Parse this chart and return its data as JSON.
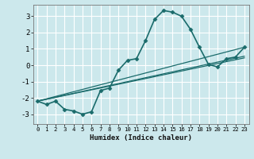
{
  "xlabel": "Humidex (Indice chaleur)",
  "bg_color": "#cce8ec",
  "grid_color": "#ffffff",
  "line_color": "#1a6b6b",
  "xlim": [
    -0.5,
    23.5
  ],
  "ylim": [
    -3.6,
    3.7
  ],
  "yticks": [
    -3,
    -2,
    -1,
    0,
    1,
    2,
    3
  ],
  "xticks": [
    0,
    1,
    2,
    3,
    4,
    5,
    6,
    7,
    8,
    9,
    10,
    11,
    12,
    13,
    14,
    15,
    16,
    17,
    18,
    19,
    20,
    21,
    22,
    23
  ],
  "curve": {
    "x": [
      0,
      1,
      2,
      3,
      4,
      5,
      6,
      7,
      8,
      9,
      10,
      11,
      12,
      13,
      14,
      15,
      16,
      17,
      18,
      19,
      20,
      21,
      22,
      23
    ],
    "y": [
      -2.2,
      -2.4,
      -2.2,
      -2.7,
      -2.8,
      -3.0,
      -2.85,
      -1.55,
      -1.4,
      -0.3,
      0.3,
      0.4,
      1.5,
      2.8,
      3.35,
      3.25,
      3.0,
      2.2,
      1.1,
      0.05,
      -0.1,
      0.4,
      0.5,
      1.1
    ]
  },
  "straight_lines": [
    {
      "x": [
        0,
        23
      ],
      "y": [
        -2.2,
        1.1
      ]
    },
    {
      "x": [
        0,
        23
      ],
      "y": [
        -2.2,
        0.55
      ]
    },
    {
      "x": [
        0,
        23
      ],
      "y": [
        -2.2,
        0.45
      ]
    }
  ]
}
